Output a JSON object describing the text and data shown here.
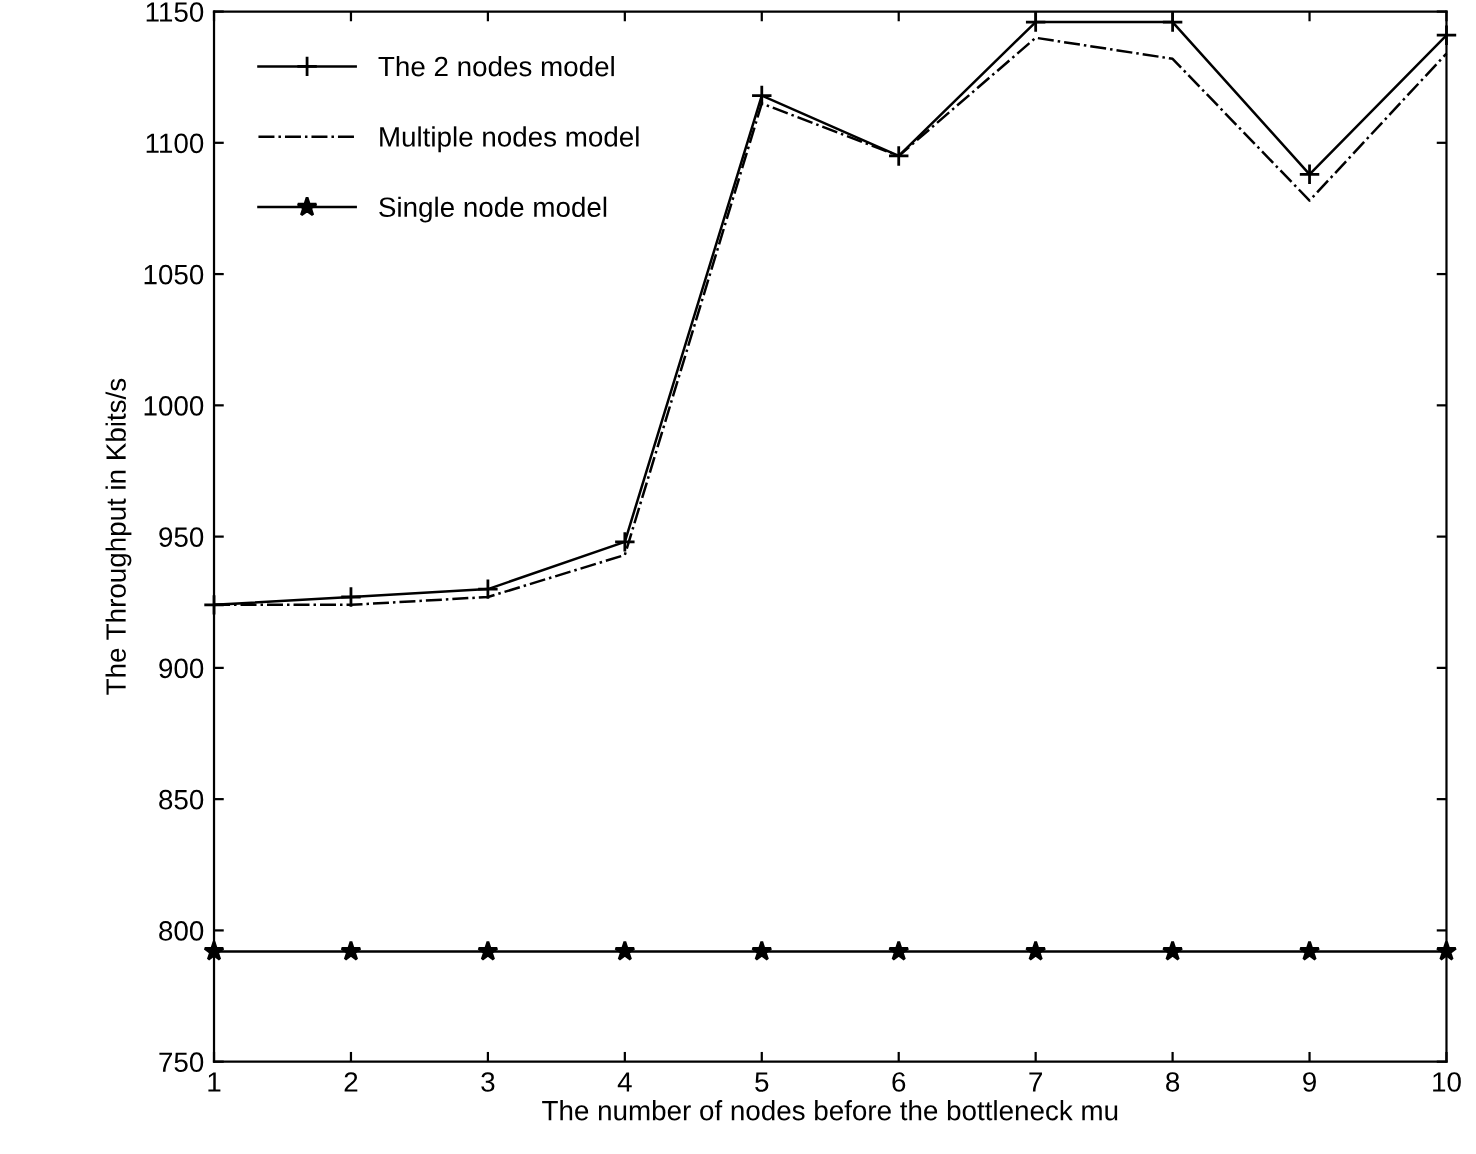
{
  "chart_data": {
    "type": "line",
    "xlabel": "The number of nodes before the bottleneck mu",
    "ylabel": "The Throughput in Kbits/s",
    "x": [
      1,
      2,
      3,
      4,
      5,
      6,
      7,
      8,
      9,
      10
    ],
    "series": [
      {
        "name": "The 2 nodes model",
        "color": "#000000",
        "marker": "cross",
        "line_style": "solid",
        "values": [
          924,
          927,
          930,
          948,
          1118,
          1095,
          1146,
          1146,
          1088,
          1141
        ]
      },
      {
        "name": "Multiple nodes model",
        "color": "#000000",
        "marker": "none",
        "line_style": "dashdot",
        "values": [
          924,
          924,
          927,
          943,
          1115,
          1095,
          1140,
          1132,
          1078,
          1134
        ]
      },
      {
        "name": "Single node model",
        "color": "#000000",
        "marker": "star",
        "line_style": "solid",
        "values": [
          792,
          792,
          792,
          792,
          792,
          792,
          792,
          792,
          792,
          792
        ]
      }
    ],
    "xlim": [
      1,
      10
    ],
    "xticks": [
      1,
      2,
      3,
      4,
      5,
      6,
      7,
      8,
      9,
      10
    ],
    "ylim": [
      750,
      1150
    ],
    "yticks": [
      750,
      800,
      850,
      900,
      950,
      1000,
      1050,
      1100,
      1150
    ],
    "grid": false,
    "legend": "top left"
  }
}
